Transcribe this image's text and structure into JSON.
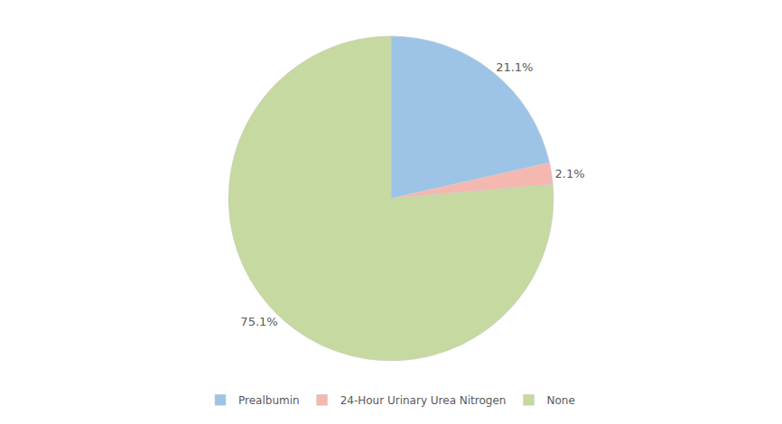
{
  "chart_data": {
    "type": "pie",
    "categories": [
      "Prealbumin",
      "24-Hour Urinary Urea Nitrogen",
      "None"
    ],
    "values": [
      21.1,
      2.1,
      75.1
    ],
    "value_labels": [
      "21.1%",
      "2.1%",
      "75.1%"
    ],
    "colors": [
      "#9dc3e6",
      "#f4b8b0",
      "#c5d9a0"
    ],
    "data_labels": true,
    "legend": "bottom"
  }
}
